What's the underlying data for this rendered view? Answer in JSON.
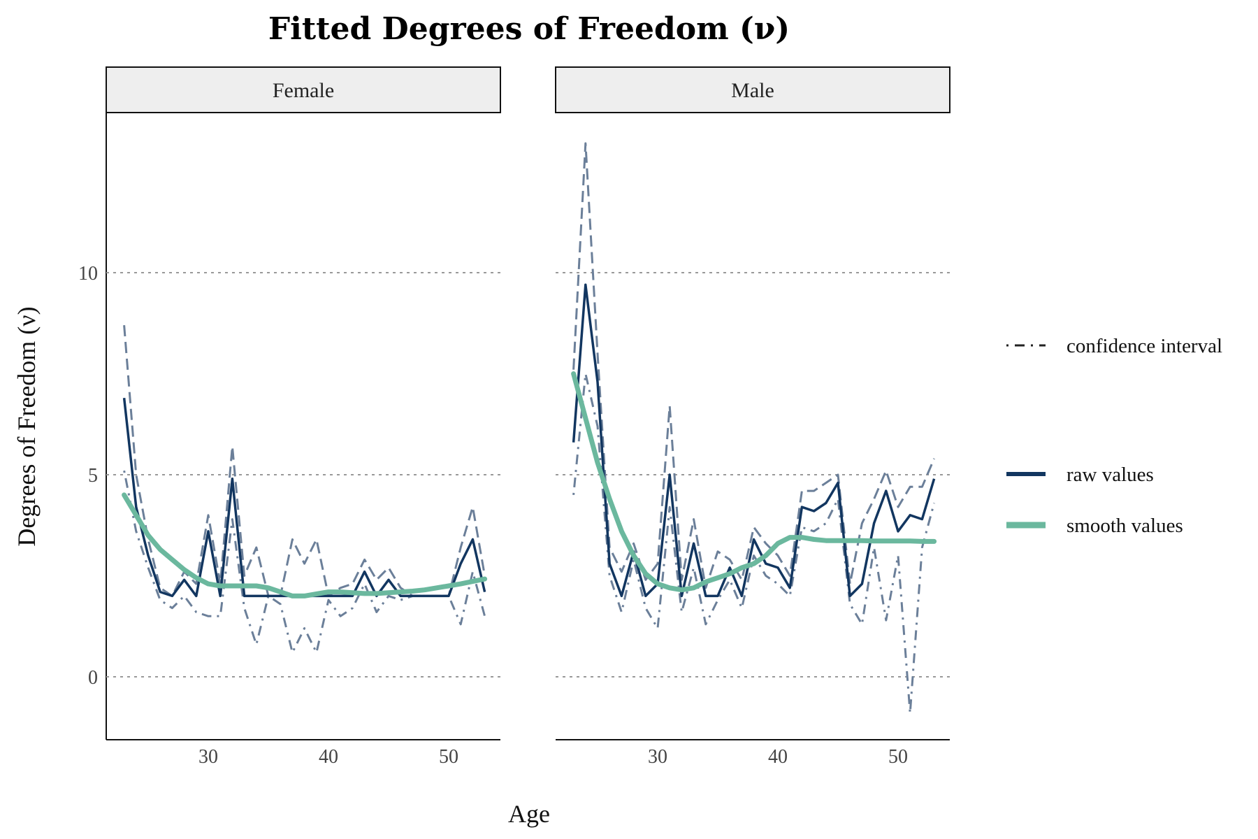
{
  "chart_data": {
    "type": "line",
    "title": "Fitted Degrees of Freedom (ν)",
    "xlabel": "Age",
    "ylabel": "Degrees of Freedom (ν)",
    "xlim": [
      22,
      55
    ],
    "ylim": [
      -1.6,
      14
    ],
    "x_ticks": [
      30,
      40,
      50
    ],
    "y_ticks": [
      0,
      5,
      10
    ],
    "grid": "horizontal dotted at major y ticks",
    "legend_position": "right",
    "legend": [
      {
        "label": "confidence interval",
        "style": "dashed/dot-dash",
        "color": "#6b7f99"
      },
      {
        "label": "raw values",
        "style": "solid",
        "color": "#123660"
      },
      {
        "label": "smooth values",
        "style": "solid thick",
        "color": "#6bb89e"
      }
    ],
    "colors": {
      "raw": "#123660",
      "smooth": "#6bb89e",
      "ci": "#6b7f99",
      "grid": "#999999",
      "strip_bg": "#eeeeee"
    },
    "panels": [
      {
        "label": "Female",
        "x": [
          23,
          24,
          25,
          26,
          27,
          28,
          29,
          30,
          31,
          32,
          33,
          34,
          35,
          36,
          37,
          38,
          39,
          40,
          41,
          42,
          43,
          44,
          45,
          46,
          47,
          48,
          49,
          50,
          51,
          52,
          53
        ],
        "raw": [
          6.9,
          4.2,
          3.0,
          2.1,
          2.0,
          2.4,
          2.0,
          3.6,
          2.0,
          4.9,
          2.0,
          2.0,
          2.0,
          2.0,
          2.0,
          2.0,
          2.0,
          2.0,
          2.0,
          2.0,
          2.6,
          2.0,
          2.4,
          2.0,
          2.0,
          2.0,
          2.0,
          2.0,
          2.8,
          3.4,
          2.1
        ],
        "ci_upper": [
          8.7,
          5.0,
          3.4,
          2.2,
          2.0,
          2.6,
          2.3,
          4.0,
          2.3,
          5.7,
          2.5,
          3.2,
          2.0,
          2.0,
          3.4,
          2.8,
          3.4,
          2.0,
          2.2,
          2.3,
          2.9,
          2.4,
          2.7,
          2.2,
          2.0,
          2.0,
          2.0,
          2.0,
          3.2,
          4.2,
          2.5
        ],
        "ci_lower": [
          5.1,
          3.6,
          2.7,
          1.9,
          1.7,
          2.0,
          1.6,
          1.5,
          1.5,
          3.9,
          1.7,
          0.8,
          2.0,
          1.8,
          0.6,
          1.2,
          0.6,
          1.9,
          1.5,
          1.7,
          2.3,
          1.6,
          2.0,
          1.9,
          2.0,
          2.0,
          2.0,
          2.0,
          1.3,
          2.6,
          1.5
        ],
        "smooth": [
          4.5,
          4.0,
          3.5,
          3.15,
          2.9,
          2.65,
          2.45,
          2.3,
          2.25,
          2.25,
          2.25,
          2.25,
          2.2,
          2.1,
          2.0,
          2.0,
          2.05,
          2.1,
          2.1,
          2.08,
          2.06,
          2.06,
          2.08,
          2.1,
          2.12,
          2.15,
          2.2,
          2.25,
          2.3,
          2.36,
          2.42
        ]
      },
      {
        "label": "Male",
        "x": [
          23,
          24,
          25,
          26,
          27,
          28,
          29,
          30,
          31,
          32,
          33,
          34,
          35,
          36,
          37,
          38,
          39,
          40,
          41,
          42,
          43,
          44,
          45,
          46,
          47,
          48,
          49,
          50,
          51,
          52,
          53
        ],
        "raw": [
          5.8,
          9.7,
          7.3,
          2.8,
          2.0,
          3.1,
          2.0,
          2.3,
          5.0,
          2.0,
          3.3,
          2.0,
          2.0,
          2.7,
          2.0,
          3.4,
          2.8,
          2.7,
          2.2,
          4.2,
          4.1,
          4.3,
          4.8,
          2.0,
          2.3,
          3.8,
          4.6,
          3.6,
          4.0,
          3.9,
          4.9
        ],
        "ci_upper": [
          7.6,
          13.2,
          8.0,
          3.2,
          2.6,
          3.3,
          2.4,
          2.8,
          6.7,
          2.4,
          3.9,
          2.2,
          3.1,
          2.9,
          2.4,
          3.7,
          3.3,
          3.0,
          2.5,
          4.6,
          4.6,
          4.8,
          5.0,
          2.3,
          3.8,
          4.4,
          5.1,
          4.2,
          4.7,
          4.7,
          5.4
        ],
        "ci_lower": [
          4.5,
          7.5,
          6.2,
          2.5,
          1.6,
          2.9,
          1.7,
          1.2,
          4.2,
          1.6,
          2.7,
          1.3,
          1.9,
          2.4,
          1.7,
          3.0,
          2.5,
          2.3,
          2.0,
          3.7,
          3.6,
          3.8,
          4.4,
          1.8,
          1.3,
          3.2,
          1.4,
          3.0,
          -0.9,
          3.2,
          4.3
        ],
        "smooth": [
          7.5,
          6.4,
          5.3,
          4.4,
          3.6,
          3.0,
          2.55,
          2.3,
          2.2,
          2.15,
          2.2,
          2.35,
          2.45,
          2.55,
          2.7,
          2.8,
          3.0,
          3.3,
          3.45,
          3.45,
          3.4,
          3.37,
          3.37,
          3.37,
          3.37,
          3.36,
          3.36,
          3.36,
          3.36,
          3.35,
          3.35
        ]
      }
    ]
  }
}
